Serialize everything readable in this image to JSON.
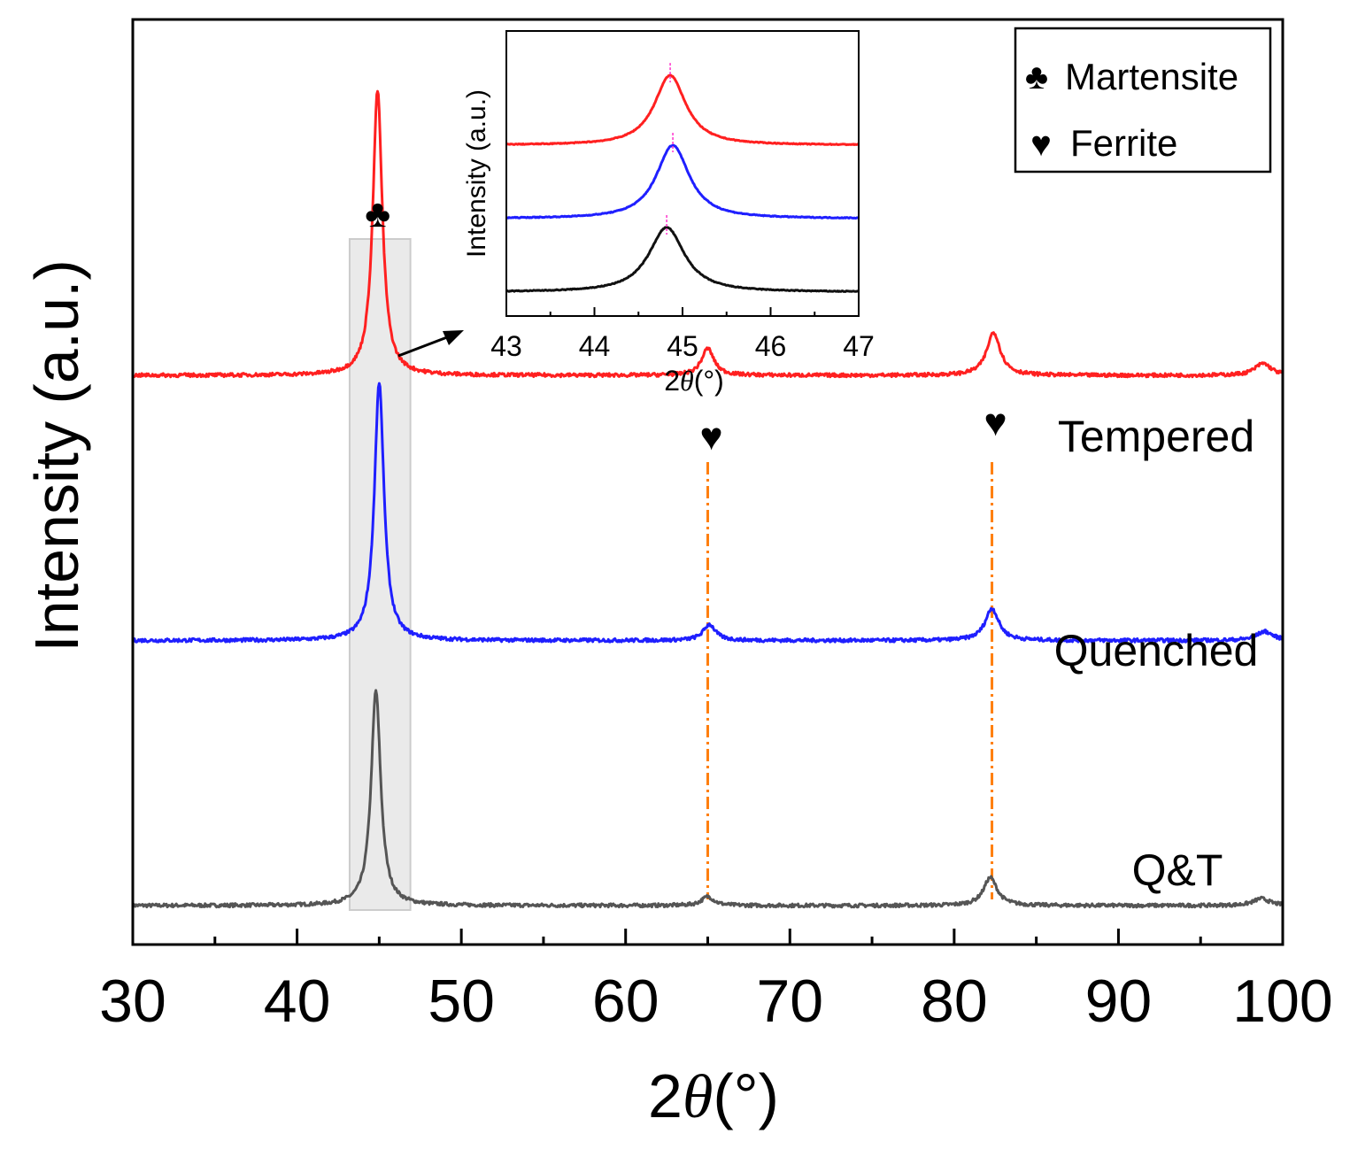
{
  "chart_data": {
    "type": "line",
    "xlabel": "2θ(°)",
    "xlabel_prefix": "2",
    "xlabel_symbol": "θ",
    "xlabel_unit": "(°)",
    "ylabel": "Intensity (a.u.)",
    "xlim": [
      30,
      100
    ],
    "x_ticks": [
      "30",
      "40",
      "50",
      "60",
      "70",
      "80",
      "90",
      "100"
    ],
    "y_ticks_shown": false,
    "highlight_region": {
      "x_range": [
        43.2,
        46.9
      ],
      "color": "#e6e6e6"
    },
    "reference_lines": [
      {
        "x": 65.0,
        "style": "dash-dot",
        "color": "#ff7f0e"
      },
      {
        "x": 82.3,
        "style": "dash-dot",
        "color": "#ff7f0e"
      }
    ],
    "series": [
      {
        "name": "Q&T",
        "label": "Q&T",
        "color": "#555555",
        "baseline": 0.0,
        "peaks": [
          {
            "x": 44.8,
            "height": 2.15,
            "width": 0.35
          },
          {
            "x": 65.0,
            "height": 0.09,
            "width": 0.45
          },
          {
            "x": 82.2,
            "height": 0.28,
            "width": 0.5
          },
          {
            "x": 98.7,
            "height": 0.07,
            "width": 0.6
          }
        ]
      },
      {
        "name": "Quenched",
        "label": "Quenched",
        "color": "#1f1fff",
        "baseline": 2.65,
        "peaks": [
          {
            "x": 45.0,
            "height": 2.58,
            "width": 0.35
          },
          {
            "x": 65.1,
            "height": 0.16,
            "width": 0.45
          },
          {
            "x": 82.3,
            "height": 0.32,
            "width": 0.5
          },
          {
            "x": 98.9,
            "height": 0.09,
            "width": 0.6
          }
        ]
      },
      {
        "name": "Tempered",
        "label": "Tempered",
        "color": "#ff2020",
        "baseline": 5.3,
        "peaks": [
          {
            "x": 44.9,
            "height": 2.85,
            "width": 0.35
          },
          {
            "x": 65.0,
            "height": 0.27,
            "width": 0.45
          },
          {
            "x": 82.4,
            "height": 0.43,
            "width": 0.5
          },
          {
            "x": 98.8,
            "height": 0.12,
            "width": 0.6
          }
        ]
      }
    ],
    "phase_markers": [
      {
        "symbol": "♣",
        "x": 44.8,
        "over": "Tempered"
      },
      {
        "symbol": "♥",
        "x": 65.0,
        "over": "Tempered"
      },
      {
        "symbol": "♥",
        "x": 82.3,
        "over": "Tempered"
      }
    ],
    "legend": {
      "location": "top-right",
      "entries": [
        {
          "symbol": "♣",
          "label": "Martensite"
        },
        {
          "symbol": "♥",
          "label": "Ferrite"
        }
      ]
    },
    "inset": {
      "type": "line",
      "location": "top-center",
      "xlabel": "2θ(°)",
      "xlabel_prefix": "2",
      "xlabel_symbol": "θ",
      "xlabel_unit": "(°)",
      "ylabel": "Intensity (a.u.)",
      "xlim": [
        43,
        47
      ],
      "x_ticks": [
        "43",
        "44",
        "45",
        "46",
        "47"
      ],
      "series": [
        {
          "name": "Tempered",
          "color": "#ff2020",
          "baseline": 2.0,
          "peak_x": 44.86,
          "height": 0.95,
          "width": 0.22,
          "marker_color": "#ff33cc"
        },
        {
          "name": "Quenched",
          "color": "#1f1fff",
          "baseline": 1.0,
          "peak_x": 44.89,
          "height": 1.0,
          "width": 0.23,
          "marker_color": "#ff33cc"
        },
        {
          "name": "Q&T",
          "color": "#111111",
          "baseline": 0.0,
          "peak_x": 44.82,
          "height": 0.88,
          "width": 0.25,
          "marker_color": "#ff33cc"
        }
      ]
    }
  }
}
